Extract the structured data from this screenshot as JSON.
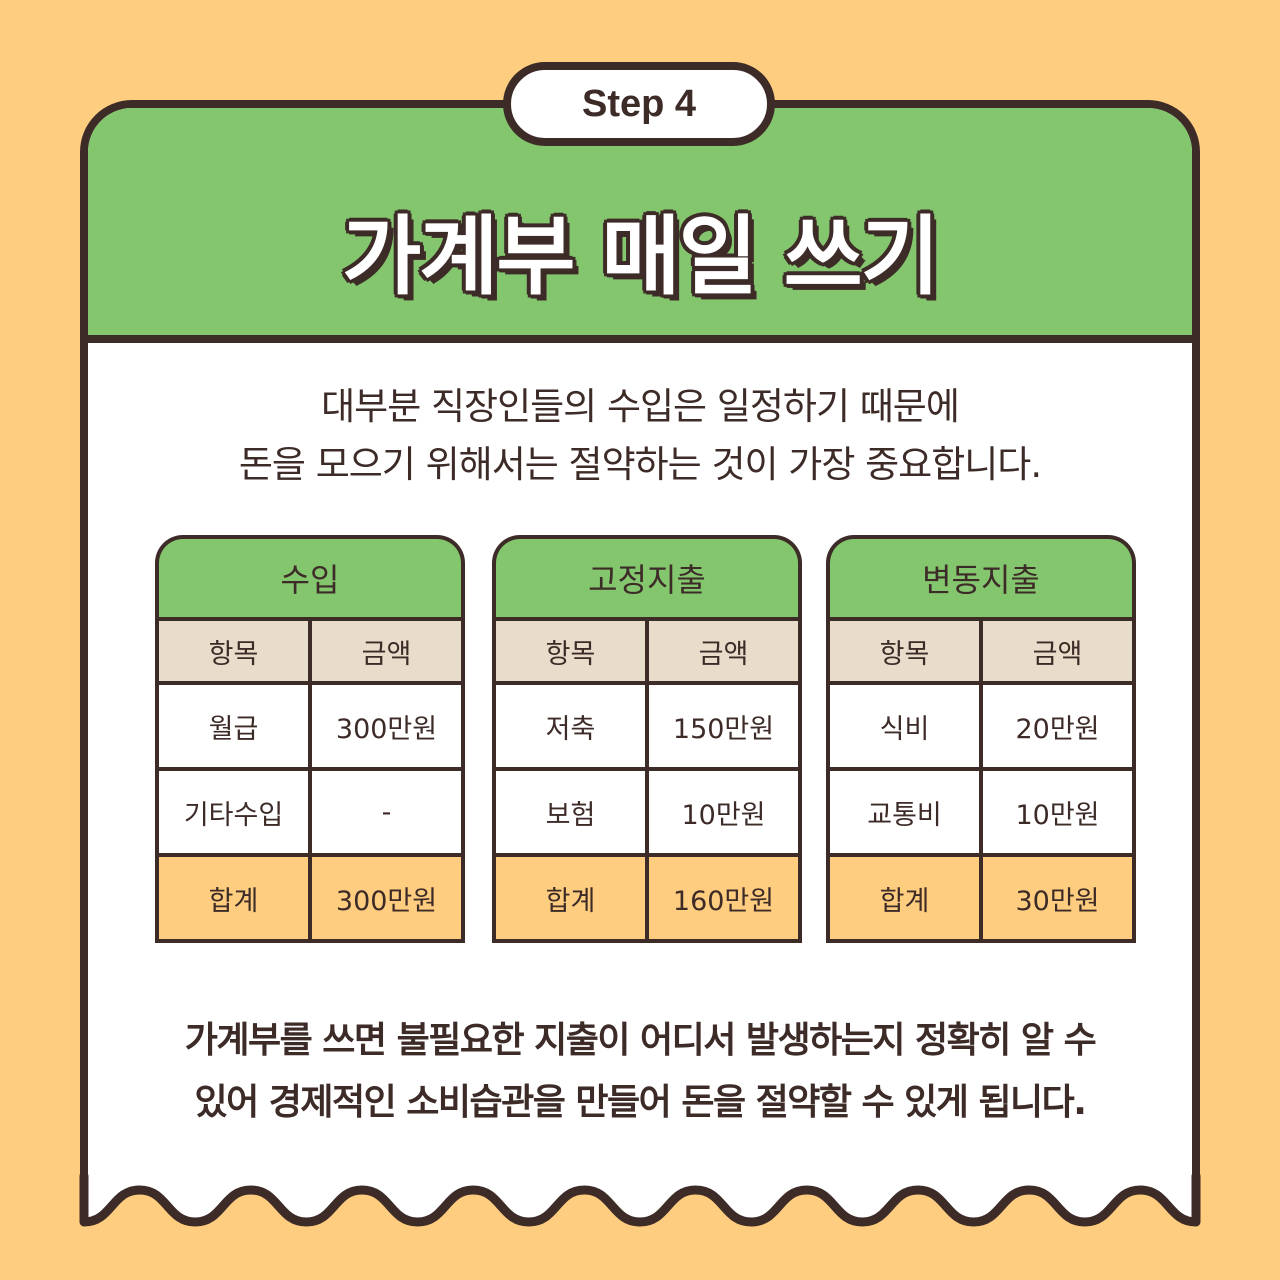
{
  "step_label": "Step 4",
  "title": "가계부 매일 쓰기",
  "intro": [
    "대부분 직장인들의 수입은 일정하기 때문에",
    "돈을 모으기 위해서는 절약하는 것이 가장 중요합니다."
  ],
  "tables": [
    {
      "title": "수입",
      "headers": [
        "항목",
        "금액"
      ],
      "rows": [
        [
          "월급",
          "300만원"
        ],
        [
          "기타수입",
          "-"
        ]
      ],
      "total": [
        "합계",
        "300만원"
      ]
    },
    {
      "title": "고정지출",
      "headers": [
        "항목",
        "금액"
      ],
      "rows": [
        [
          "저축",
          "150만원"
        ],
        [
          "보험",
          "10만원"
        ]
      ],
      "total": [
        "합계",
        "160만원"
      ]
    },
    {
      "title": "변동지출",
      "headers": [
        "항목",
        "금액"
      ],
      "rows": [
        [
          "식비",
          "20만원"
        ],
        [
          "교통비",
          "10만원"
        ]
      ],
      "total": [
        "합계",
        "30만원"
      ]
    }
  ],
  "outro": [
    "가계부를 쓰면 불필요한 지출이 어디서 발생하는지 정확히 알 수",
    "있어 경제적인 소비습관을 만들어 돈을 절약할 수 있게 됩니다."
  ],
  "colors": {
    "background": "#ffcd7f",
    "green": "#83c66e",
    "outline": "#3d2b28",
    "header_row": "#e8dccb",
    "total_row": "#ffcd7f"
  }
}
